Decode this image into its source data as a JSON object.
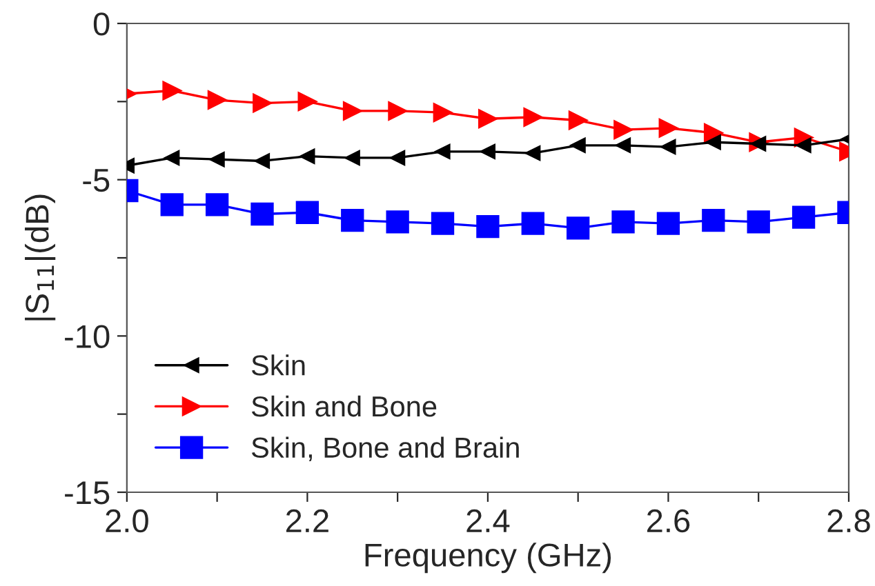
{
  "chart_data": {
    "type": "line",
    "xlabel": "Frequency (GHz)",
    "ylabel": "|S$_{11}$|(dB)",
    "x": [
      2.0,
      2.05,
      2.1,
      2.15,
      2.2,
      2.25,
      2.3,
      2.35,
      2.4,
      2.45,
      2.5,
      2.55,
      2.6,
      2.65,
      2.7,
      2.75,
      2.8
    ],
    "series": [
      {
        "name": "Skin",
        "color": "#000000",
        "marker": "triangle-left",
        "values": [
          -4.55,
          -4.3,
          -4.35,
          -4.4,
          -4.25,
          -4.3,
          -4.3,
          -4.1,
          -4.1,
          -4.15,
          -3.9,
          -3.9,
          -3.95,
          -3.8,
          -3.85,
          -3.9,
          -3.7
        ]
      },
      {
        "name": "Skin and Bone",
        "color": "#ff0000",
        "marker": "triangle-right",
        "values": [
          -2.25,
          -2.15,
          -2.45,
          -2.55,
          -2.5,
          -2.8,
          -2.8,
          -2.85,
          -3.05,
          -3.0,
          -3.1,
          -3.4,
          -3.35,
          -3.5,
          -3.8,
          -3.65,
          -4.1
        ]
      },
      {
        "name": "Skin, Bone and Brain",
        "color": "#0000ff",
        "marker": "square",
        "values": [
          -5.35,
          -5.8,
          -5.8,
          -6.1,
          -6.05,
          -6.3,
          -6.35,
          -6.4,
          -6.5,
          -6.4,
          -6.55,
          -6.35,
          -6.4,
          -6.3,
          -6.35,
          -6.2,
          -6.05
        ]
      }
    ],
    "xlim": [
      2.0,
      2.8
    ],
    "xticks": [
      {
        "value": 2.0,
        "label": "2.0"
      },
      {
        "value": 2.1,
        "label": null
      },
      {
        "value": 2.2,
        "label": "2.2"
      },
      {
        "value": 2.3,
        "label": null
      },
      {
        "value": 2.4,
        "label": "2.4"
      },
      {
        "value": 2.5,
        "label": null
      },
      {
        "value": 2.6,
        "label": "2.6"
      },
      {
        "value": 2.7,
        "label": null
      },
      {
        "value": 2.8,
        "label": "2.8"
      }
    ],
    "ylim": [
      -15,
      0
    ],
    "yticks": [
      -15,
      {
        "value": -12.5,
        "label": null
      },
      -10,
      {
        "value": -7.5,
        "label": null
      },
      -5,
      {
        "value": -2.5,
        "label": null
      },
      0
    ],
    "grid": false,
    "legend": "bottom left",
    "line_style": "solid"
  }
}
